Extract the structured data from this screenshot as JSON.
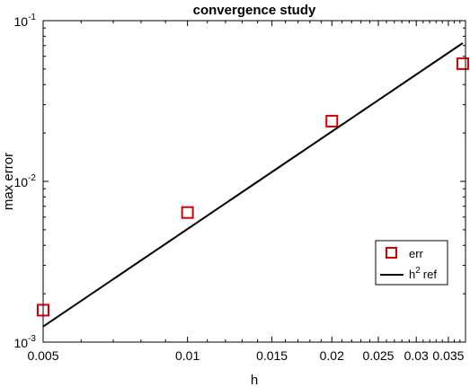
{
  "chart_data": {
    "type": "scatter",
    "title": "convergence study",
    "xlabel": "h",
    "ylabel": "max error",
    "xscale": "log",
    "yscale": "log",
    "xlim": [
      0.005,
      0.038
    ],
    "ylim": [
      0.001,
      0.1
    ],
    "grid": false,
    "legend_position": "lower-right",
    "x_ticks": [
      {
        "value": 0.005,
        "label": "0.005"
      },
      {
        "value": 0.01,
        "label": "0.01"
      },
      {
        "value": 0.015,
        "label": "0.015"
      },
      {
        "value": 0.02,
        "label": "0.02"
      },
      {
        "value": 0.025,
        "label": "0.025"
      },
      {
        "value": 0.03,
        "label": "0.03"
      },
      {
        "value": 0.035,
        "label": "0.035"
      }
    ],
    "y_ticks": [
      {
        "value": 0.001,
        "base": "10",
        "exp": "-3"
      },
      {
        "value": 0.01,
        "base": "10",
        "exp": "-2"
      },
      {
        "value": 0.1,
        "base": "10",
        "exp": "-1"
      }
    ],
    "series": [
      {
        "name": "err",
        "kind": "markers",
        "marker": "square",
        "color": "#d40000",
        "x": [
          0.005,
          0.01,
          0.02,
          0.0375
        ],
        "y": [
          0.00158,
          0.0064,
          0.0237,
          0.054
        ]
      },
      {
        "name": "ref",
        "name_prefix": "h",
        "name_superscript": "2",
        "kind": "line",
        "color": "#000000",
        "x": [
          0.005,
          0.0375
        ],
        "y": [
          0.00125,
          0.0725
        ]
      }
    ]
  }
}
